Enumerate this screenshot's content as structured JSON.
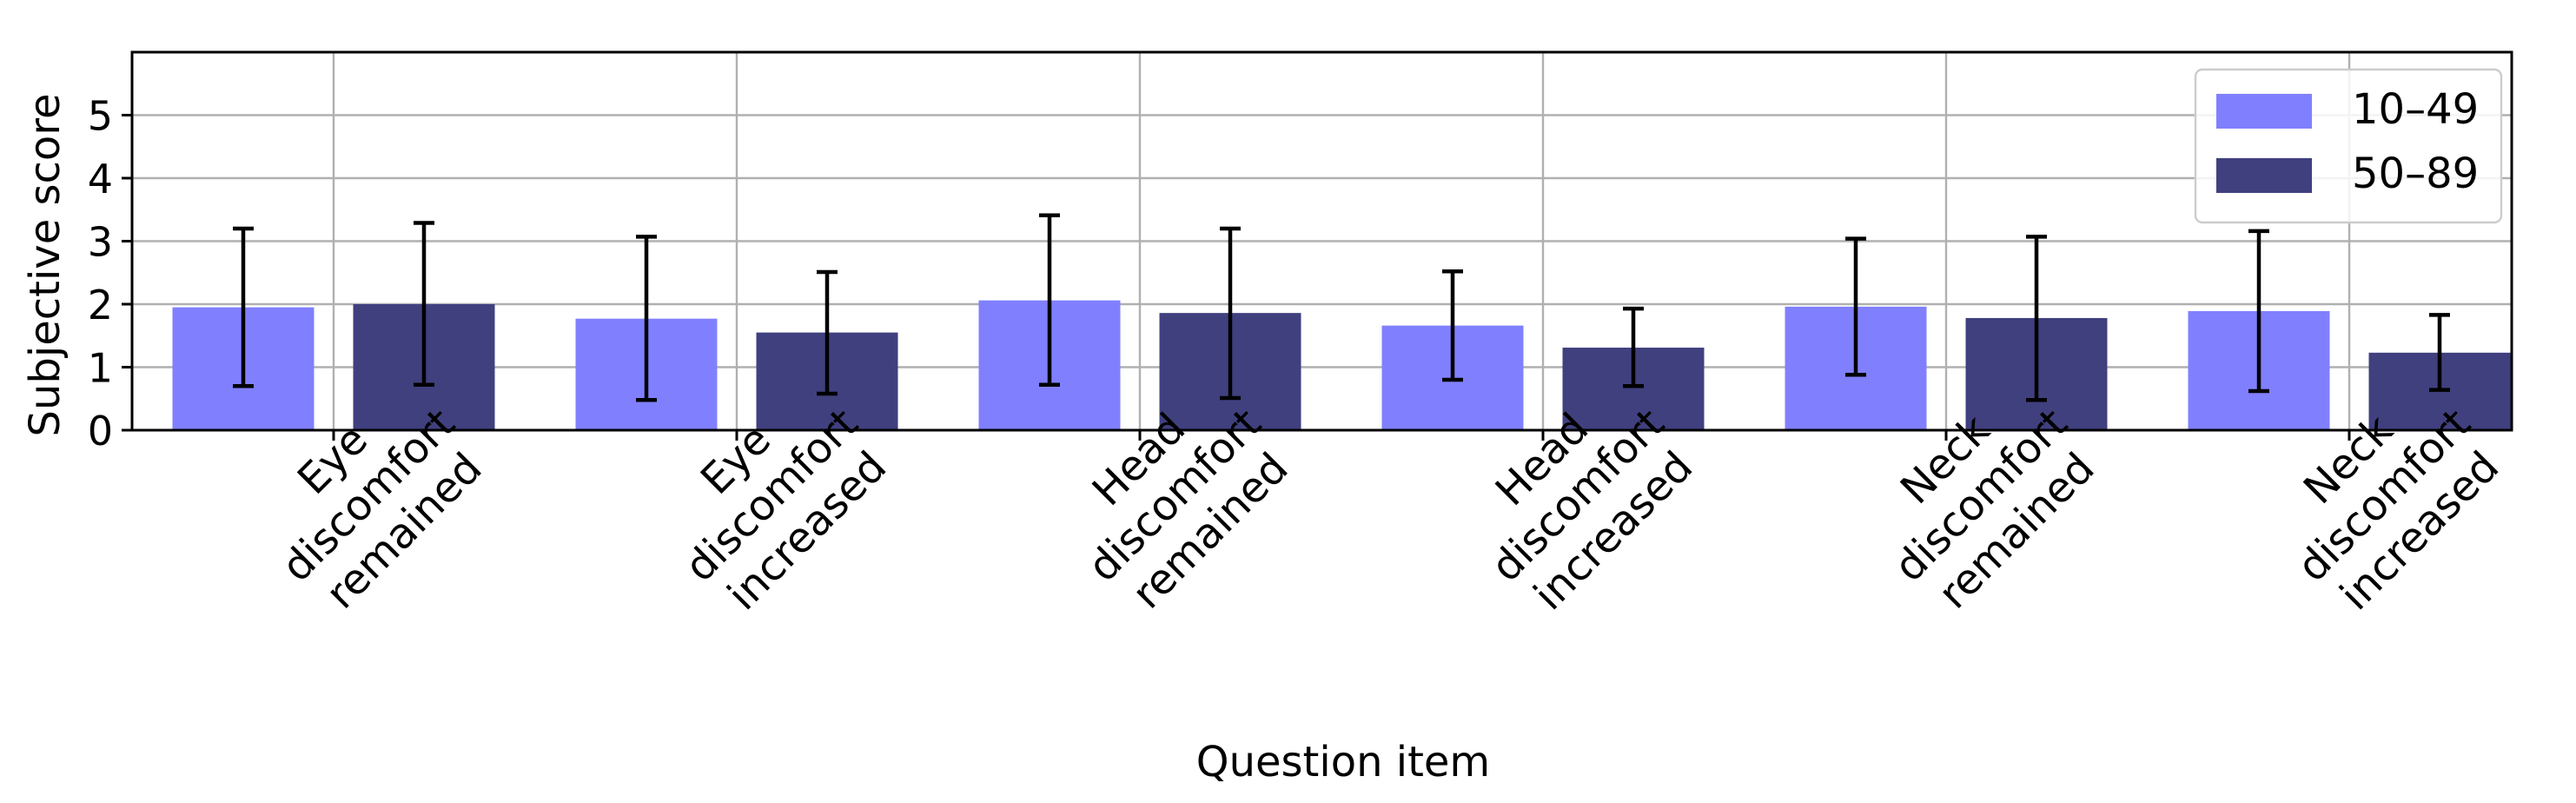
{
  "chart_data": {
    "type": "bar",
    "title": "",
    "xlabel": "Question item",
    "ylabel": "Subjective score",
    "ylim": [
      0,
      6
    ],
    "yticks": [
      0,
      1,
      2,
      3,
      4,
      5
    ],
    "grid": true,
    "legend_position": "top-right",
    "categories": [
      [
        "Eye",
        "discomfort",
        "remained"
      ],
      [
        "Eye",
        "discomfort",
        "increased"
      ],
      [
        "Head",
        "discomfort",
        "remained"
      ],
      [
        "Head",
        "discomfort",
        "increased"
      ],
      [
        "Neck",
        "discomfort",
        "remained"
      ],
      [
        "Neck",
        "discomfort",
        "increased"
      ]
    ],
    "series": [
      {
        "name": "10–49",
        "color": "#8080ff",
        "values": [
          1.95,
          1.77,
          2.06,
          1.66,
          1.96,
          1.89
        ],
        "error_low": [
          0.7,
          0.48,
          0.72,
          0.8,
          0.88,
          0.62
        ],
        "error_high": [
          3.2,
          3.07,
          3.41,
          2.52,
          3.04,
          3.16
        ]
      },
      {
        "name": "50–89",
        "color": "#40407f",
        "values": [
          2.0,
          1.55,
          1.86,
          1.31,
          1.78,
          1.23
        ],
        "error_low": [
          0.72,
          0.58,
          0.51,
          0.7,
          0.48,
          0.64
        ],
        "error_high": [
          3.29,
          2.51,
          3.2,
          1.93,
          3.07,
          1.83
        ]
      }
    ]
  }
}
